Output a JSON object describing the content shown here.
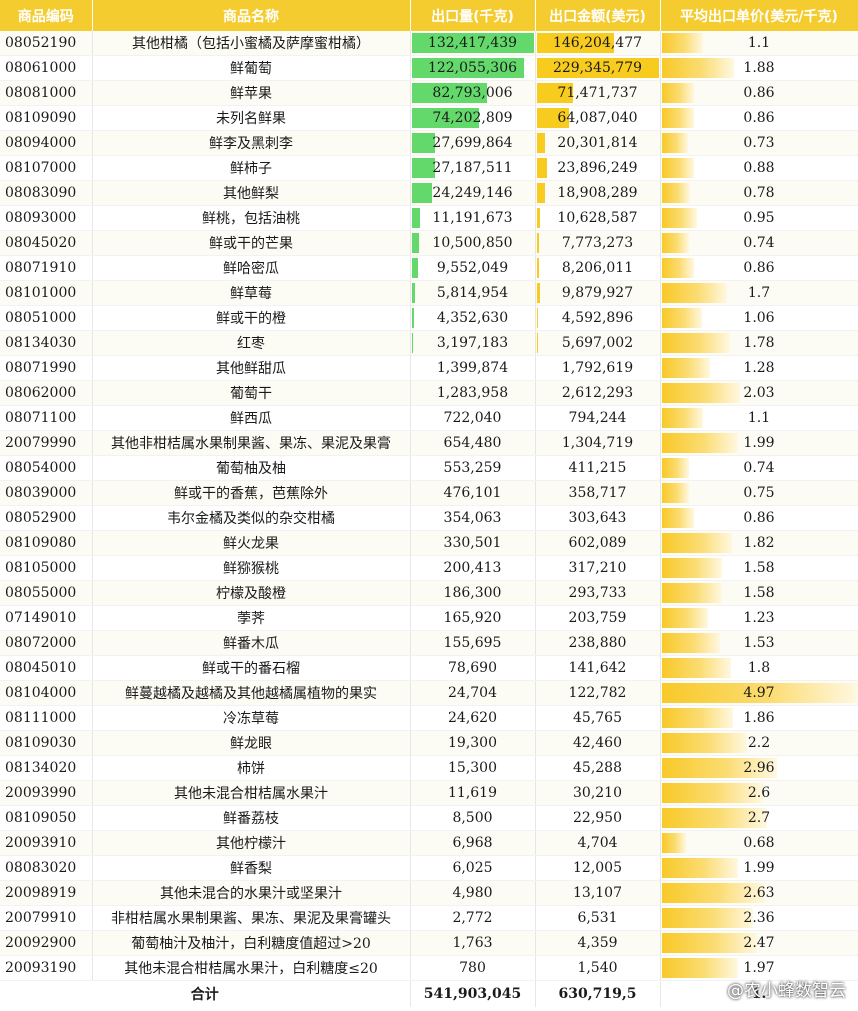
{
  "headers": {
    "code": "商品编码",
    "name": "商品名称",
    "volume": "出口量(千克)",
    "value": "出口金额(美元)",
    "price": "平均出口单价(美元/千克)"
  },
  "colors": {
    "header_bg": "#f5cc30",
    "volume_bar": "#63d96b",
    "value_bar": "#f8cc1f",
    "price_bar": "#f8c928"
  },
  "rows": [
    {
      "code": "08052190",
      "name": "其他柑橘（包括小蜜橘及萨摩蜜柑橘）",
      "volume": "132,417,439",
      "value": "146,204,477",
      "price": "1.1"
    },
    {
      "code": "08061000",
      "name": "鲜葡萄",
      "volume": "122,055,306",
      "value": "229,345,779",
      "price": "1.88"
    },
    {
      "code": "08081000",
      "name": "鲜苹果",
      "volume": "82,793,006",
      "value": "71,471,737",
      "price": "0.86"
    },
    {
      "code": "08109090",
      "name": "未列名鲜果",
      "volume": "74,202,809",
      "value": "64,087,040",
      "price": "0.86"
    },
    {
      "code": "08094000",
      "name": "鲜李及黑刺李",
      "volume": "27,699,864",
      "value": "20,301,814",
      "price": "0.73"
    },
    {
      "code": "08107000",
      "name": "鲜柿子",
      "volume": "27,187,511",
      "value": "23,896,249",
      "price": "0.88"
    },
    {
      "code": "08083090",
      "name": "其他鲜梨",
      "volume": "24,249,146",
      "value": "18,908,289",
      "price": "0.78"
    },
    {
      "code": "08093000",
      "name": "鲜桃，包括油桃",
      "volume": "11,191,673",
      "value": "10,628,587",
      "price": "0.95"
    },
    {
      "code": "08045020",
      "name": "鲜或干的芒果",
      "volume": "10,500,850",
      "value": "7,773,273",
      "price": "0.74"
    },
    {
      "code": "08071910",
      "name": "鲜哈密瓜",
      "volume": "9,552,049",
      "value": "8,206,011",
      "price": "0.86"
    },
    {
      "code": "08101000",
      "name": "鲜草莓",
      "volume": "5,814,954",
      "value": "9,879,927",
      "price": "1.7"
    },
    {
      "code": "08051000",
      "name": "鲜或干的橙",
      "volume": "4,352,630",
      "value": "4,592,896",
      "price": "1.06"
    },
    {
      "code": "08134030",
      "name": "红枣",
      "volume": "3,197,183",
      "value": "5,697,002",
      "price": "1.78"
    },
    {
      "code": "08071990",
      "name": "其他鲜甜瓜",
      "volume": "1,399,874",
      "value": "1,792,619",
      "price": "1.28"
    },
    {
      "code": "08062000",
      "name": "葡萄干",
      "volume": "1,283,958",
      "value": "2,612,293",
      "price": "2.03"
    },
    {
      "code": "08071100",
      "name": "鲜西瓜",
      "volume": "722,040",
      "value": "794,244",
      "price": "1.1"
    },
    {
      "code": "20079990",
      "name": "其他非柑桔属水果制果酱、果冻、果泥及果膏",
      "volume": "654,480",
      "value": "1,304,719",
      "price": "1.99"
    },
    {
      "code": "08054000",
      "name": "葡萄柚及柚",
      "volume": "553,259",
      "value": "411,215",
      "price": "0.74"
    },
    {
      "code": "08039000",
      "name": "鲜或干的香蕉，芭蕉除外",
      "volume": "476,101",
      "value": "358,717",
      "price": "0.75"
    },
    {
      "code": "08052900",
      "name": "韦尔金橘及类似的杂交柑橘",
      "volume": "354,063",
      "value": "303,643",
      "price": "0.86"
    },
    {
      "code": "08109080",
      "name": "鲜火龙果",
      "volume": "330,501",
      "value": "602,089",
      "price": "1.82"
    },
    {
      "code": "08105000",
      "name": "鲜猕猴桃",
      "volume": "200,413",
      "value": "317,210",
      "price": "1.58"
    },
    {
      "code": "08055000",
      "name": "柠檬及酸橙",
      "volume": "186,300",
      "value": "293,733",
      "price": "1.58"
    },
    {
      "code": "07149010",
      "name": "荸荠",
      "volume": "165,920",
      "value": "203,759",
      "price": "1.23"
    },
    {
      "code": "08072000",
      "name": "鲜番木瓜",
      "volume": "155,695",
      "value": "238,880",
      "price": "1.53"
    },
    {
      "code": "08045010",
      "name": "鲜或干的番石榴",
      "volume": "78,690",
      "value": "141,642",
      "price": "1.8"
    },
    {
      "code": "08104000",
      "name": "鲜蔓越橘及越橘及其他越橘属植物的果实",
      "volume": "24,704",
      "value": "122,782",
      "price": "4.97"
    },
    {
      "code": "08111000",
      "name": "冷冻草莓",
      "volume": "24,620",
      "value": "45,765",
      "price": "1.86"
    },
    {
      "code": "08109030",
      "name": "鲜龙眼",
      "volume": "19,300",
      "value": "42,460",
      "price": "2.2"
    },
    {
      "code": "08134020",
      "name": "柿饼",
      "volume": "15,300",
      "value": "45,288",
      "price": "2.96"
    },
    {
      "code": "20093990",
      "name": "其他未混合柑桔属水果汁",
      "volume": "11,619",
      "value": "30,210",
      "price": "2.6"
    },
    {
      "code": "08109050",
      "name": "鲜番荔枝",
      "volume": "8,500",
      "value": "22,950",
      "price": "2.7"
    },
    {
      "code": "20093910",
      "name": "其他柠檬汁",
      "volume": "6,968",
      "value": "4,704",
      "price": "0.68"
    },
    {
      "code": "08083020",
      "name": "鲜香梨",
      "volume": "6,025",
      "value": "12,005",
      "price": "1.99"
    },
    {
      "code": "20098919",
      "name": "其他未混合的水果汁或坚果汁",
      "volume": "4,980",
      "value": "13,107",
      "price": "2.63"
    },
    {
      "code": "20079910",
      "name": "非柑桔属水果制果酱、果冻、果泥及果膏罐头",
      "volume": "2,772",
      "value": "6,531",
      "price": "2.36"
    },
    {
      "code": "20092900",
      "name": "葡萄柚汁及柚汁，白利糖度值超过>20",
      "volume": "1,763",
      "value": "4,359",
      "price": "2.47"
    },
    {
      "code": "20093190",
      "name": "其他未混合柑桔属水果汁，白利糖度≤20",
      "volume": "780",
      "value": "1,540",
      "price": "1.97"
    }
  ],
  "total": {
    "label": "合计",
    "volume": "541,903,045",
    "value": "630,719,5",
    "price": "1."
  },
  "watermark": "@农小蜂数智云",
  "bar_max": {
    "volume": 132417439,
    "value": 229345779,
    "price": 4.97
  }
}
